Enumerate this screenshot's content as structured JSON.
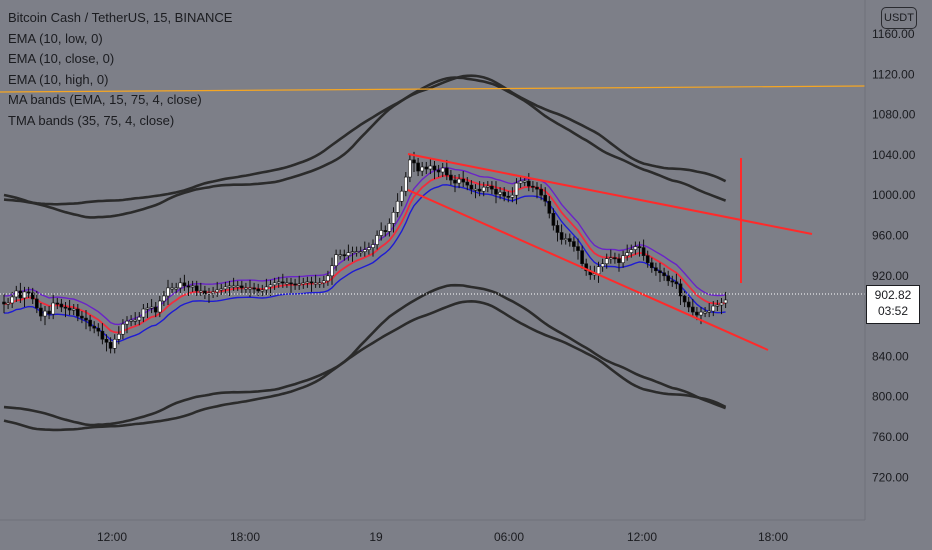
{
  "title": "Bitcoin Cash / TetherUS, 15, BINANCE",
  "indicators": [
    "EMA (10, low, 0)",
    "EMA (10, close, 0)",
    "EMA (10, high, 0)",
    "MA bands (EMA, 15, 75, 4, close)",
    "TMA bands (35, 75, 4, close)"
  ],
  "currency": "USDT",
  "last_price": "902.82",
  "countdown": "03:52",
  "colors": {
    "background": "#7d7f88",
    "candle_up": "#ffffff",
    "candle_down": "#000000",
    "ema_low": "#1e1bd4",
    "ema_close": "#f22c3d",
    "ema_high": "#6a23c8",
    "bands": "#2b2b2b",
    "horizontal_line": "#f5a623",
    "trendlines": "#ff2a2a"
  },
  "chart_data": {
    "type": "candlestick",
    "y_axis": {
      "side": "right",
      "range": [
        694,
        1176
      ],
      "ticks": [
        "1160.00",
        "1120.00",
        "1080.00",
        "1040.00",
        "1000.00",
        "960.00",
        "920.00",
        "880.00",
        "840.00",
        "800.00",
        "760.00",
        "720.00"
      ]
    },
    "x_axis": {
      "ticks": [
        "12:00",
        "18:00",
        "19",
        "06:00",
        "12:00",
        "18:00"
      ]
    },
    "grid": false,
    "closes": [
      892,
      893,
      899,
      905,
      898,
      904,
      903,
      897,
      888,
      880,
      885,
      882,
      893,
      892,
      889,
      888,
      886,
      887,
      880,
      878,
      876,
      870,
      868,
      865,
      857,
      854,
      848,
      857,
      862,
      872,
      875,
      876,
      876,
      879,
      887,
      888,
      889,
      884,
      895,
      900,
      908,
      908,
      908,
      913,
      910,
      909,
      910,
      905,
      905,
      902,
      903,
      904,
      906,
      907,
      909,
      910,
      910,
      910,
      908,
      908,
      908,
      907,
      905,
      906,
      909,
      911,
      913,
      914,
      913,
      913,
      912,
      911,
      912,
      913,
      914,
      913,
      913,
      913,
      915,
      920,
      930,
      941,
      941,
      940,
      943,
      944,
      944,
      944,
      946,
      948,
      951,
      960,
      965,
      964,
      972,
      983,
      994,
      1004,
      1018,
      1035,
      1032,
      1024,
      1028,
      1026,
      1029,
      1025,
      1023,
      1027,
      1020,
      1015,
      1012,
      1016,
      1013,
      1010,
      1006,
      1006,
      1004,
      1008,
      1009,
      1006,
      1001,
      1003,
      999,
      998,
      1000,
      1012,
      1014,
      1014,
      1009,
      1008,
      1006,
      1000,
      994,
      982,
      970,
      963,
      956,
      957,
      954,
      949,
      945,
      932,
      925,
      921,
      922,
      929,
      932,
      937,
      938,
      937,
      933,
      940,
      943,
      946,
      949,
      948,
      940,
      933,
      928,
      925,
      923,
      920,
      915,
      914,
      912,
      900,
      894,
      889,
      884,
      881,
      884,
      884,
      885,
      890,
      891,
      893,
      896
    ],
    "trendlines": [
      {
        "from": [
          "19",
          1042
        ],
        "to": [
          ">18:00",
          966
        ]
      },
      {
        "from": [
          "19",
          1042
        ],
        "to": [
          ">18:00",
          848
        ]
      }
    ],
    "horizontal_line": 1110,
    "vertical_marker": {
      "x": "~17:15",
      "range": [
        913,
        1036
      ]
    }
  }
}
